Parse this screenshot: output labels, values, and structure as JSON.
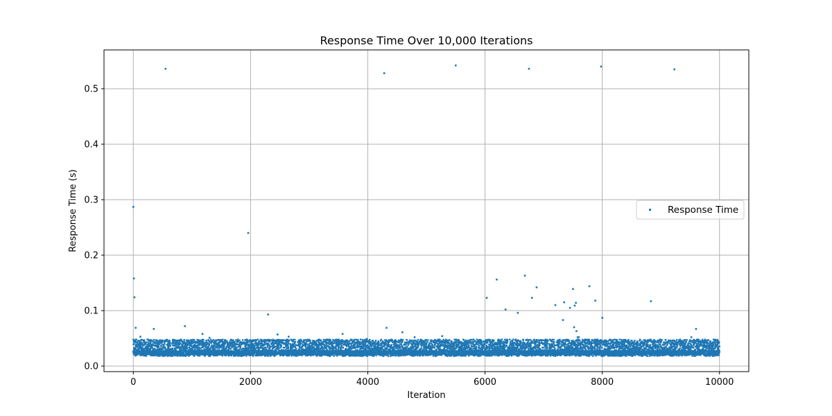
{
  "chart_data": {
    "type": "scatter",
    "title": "Response Time Over 10,000 Iterations",
    "xlabel": "Iteration",
    "ylabel": "Response Time (s)",
    "xlim": [
      -500,
      10500
    ],
    "ylim": [
      -0.01,
      0.57
    ],
    "xticks": [
      0,
      2000,
      4000,
      6000,
      8000,
      10000
    ],
    "xtick_labels": [
      "0",
      "2000",
      "4000",
      "6000",
      "8000",
      "10000"
    ],
    "yticks": [
      0.0,
      0.1,
      0.2,
      0.3,
      0.4,
      0.5
    ],
    "ytick_labels": [
      "0.0",
      "0.1",
      "0.2",
      "0.3",
      "0.4",
      "0.5"
    ],
    "grid": true,
    "legend_position": "center-right",
    "series": [
      {
        "name": "Response Time",
        "color": "#1f77b4",
        "description_of_bulk": "~10000 points, x from 0 to 10000, y mostly between 0.018 and 0.048 (dense band)",
        "bulk_x_range": [
          0,
          10000
        ],
        "bulk_y_range": [
          0.018,
          0.048
        ],
        "bulk_count": 10000,
        "outliers": [
          [
            0,
            0.287
          ],
          [
            10,
            0.158
          ],
          [
            20,
            0.124
          ],
          [
            40,
            0.069
          ],
          [
            120,
            0.053
          ],
          [
            350,
            0.067
          ],
          [
            550,
            0.536
          ],
          [
            880,
            0.072
          ],
          [
            1180,
            0.058
          ],
          [
            1300,
            0.051
          ],
          [
            1960,
            0.24
          ],
          [
            2300,
            0.093
          ],
          [
            2460,
            0.057
          ],
          [
            2650,
            0.053
          ],
          [
            3570,
            0.058
          ],
          [
            3980,
            0.049
          ],
          [
            4280,
            0.528
          ],
          [
            4320,
            0.069
          ],
          [
            4590,
            0.061
          ],
          [
            4800,
            0.052
          ],
          [
            5270,
            0.054
          ],
          [
            5500,
            0.542
          ],
          [
            6030,
            0.123
          ],
          [
            6200,
            0.156
          ],
          [
            6350,
            0.102
          ],
          [
            6560,
            0.096
          ],
          [
            6680,
            0.163
          ],
          [
            6750,
            0.536
          ],
          [
            6800,
            0.123
          ],
          [
            6880,
            0.142
          ],
          [
            7200,
            0.11
          ],
          [
            7330,
            0.083
          ],
          [
            7350,
            0.115
          ],
          [
            7450,
            0.105
          ],
          [
            7500,
            0.139
          ],
          [
            7520,
            0.07
          ],
          [
            7530,
            0.109
          ],
          [
            7550,
            0.114
          ],
          [
            7560,
            0.063
          ],
          [
            7580,
            0.052
          ],
          [
            7600,
            0.052
          ],
          [
            7780,
            0.144
          ],
          [
            7880,
            0.118
          ],
          [
            7980,
            0.54
          ],
          [
            8000,
            0.087
          ],
          [
            8830,
            0.117
          ],
          [
            9230,
            0.535
          ],
          [
            9520,
            0.052
          ],
          [
            9600,
            0.067
          ]
        ]
      }
    ]
  }
}
